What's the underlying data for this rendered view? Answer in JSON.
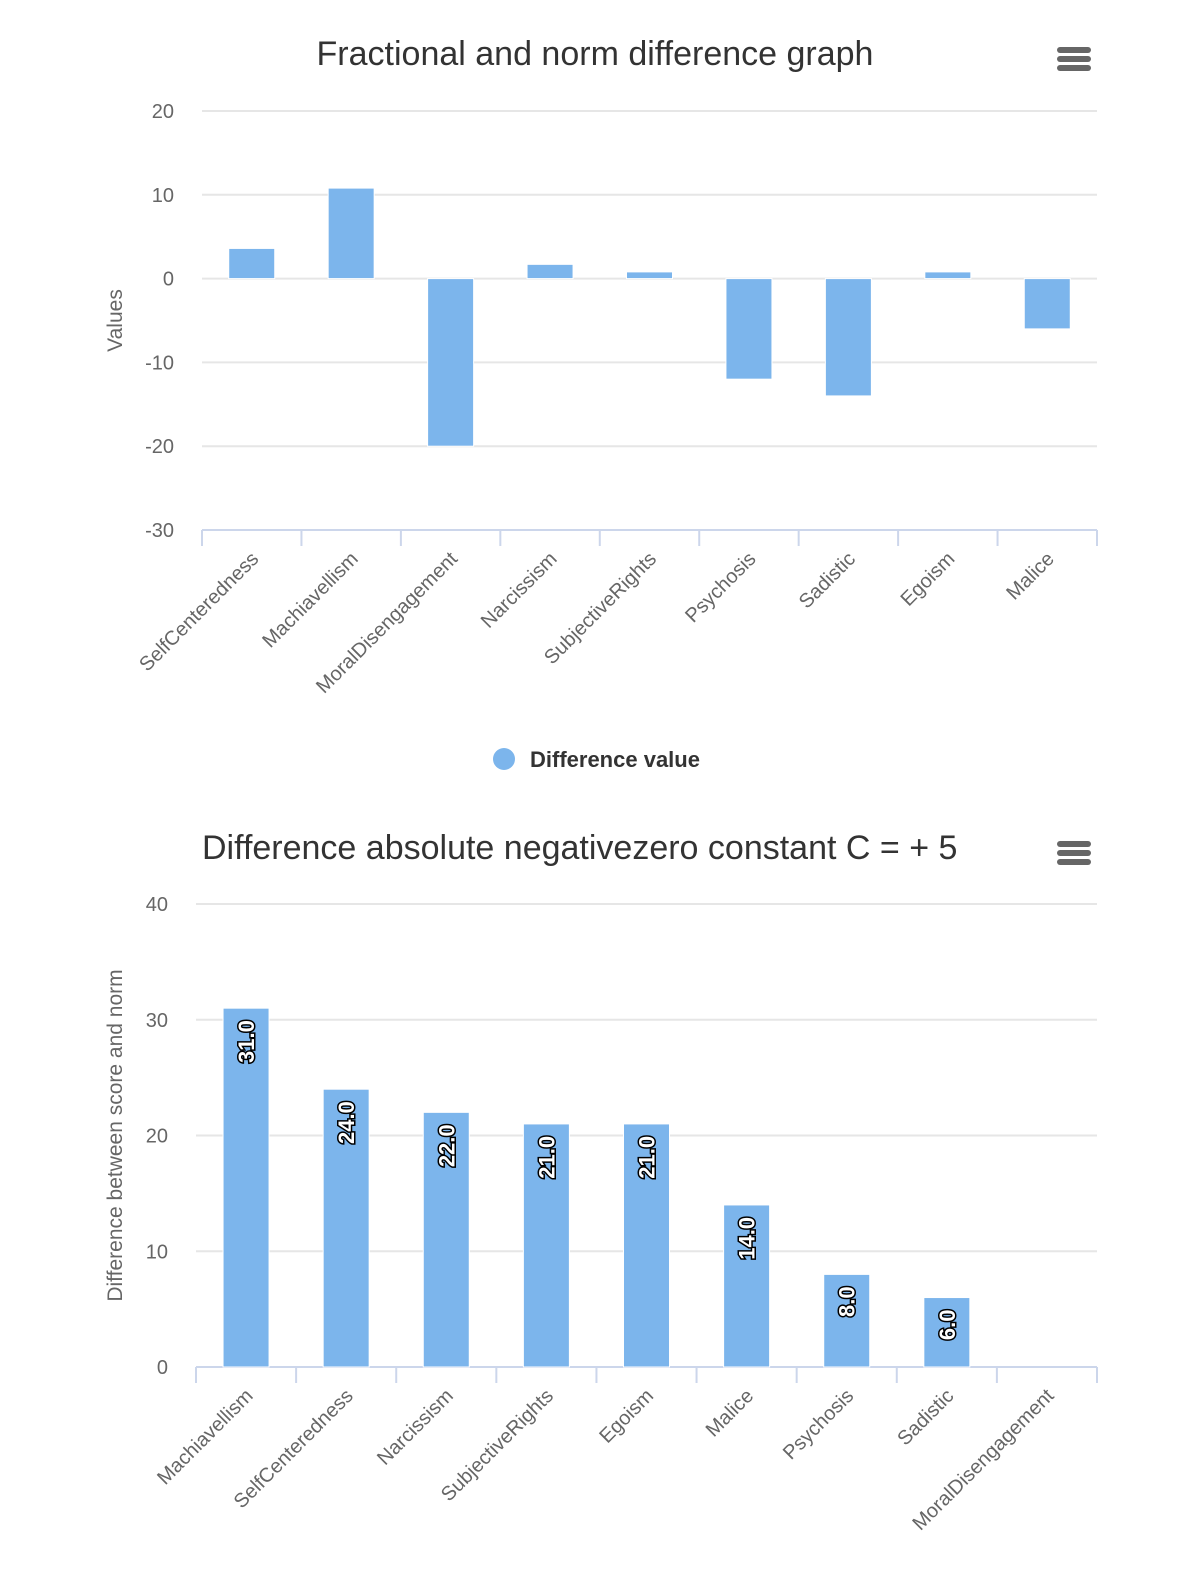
{
  "chart_data": [
    {
      "type": "bar",
      "title": "Fractional and norm difference graph",
      "ylabel": "Values",
      "xlabel": "",
      "ylim": [
        -30,
        20
      ],
      "yticks": [
        20,
        10,
        0,
        -10,
        -20,
        -30
      ],
      "grid": true,
      "legend_position": "bottom",
      "categories": [
        "SelfCenteredness",
        "Machiavellism",
        "MoralDisengagement",
        "Narcissism",
        "SubjectiveRights",
        "Psychosis",
        "Sadistic",
        "Egoism",
        "Malice"
      ],
      "series": [
        {
          "name": "Difference value",
          "values": [
            3.6,
            10.8,
            -20,
            1.7,
            0.8,
            -12,
            -14,
            0.8,
            -6
          ]
        }
      ],
      "color": "#7cb5ec"
    },
    {
      "type": "bar",
      "title": "Difference absolute negativezero constant C = + 5",
      "ylabel": "Difference between score and norm",
      "xlabel": "",
      "ylim": [
        0,
        40
      ],
      "yticks": [
        40,
        30,
        20,
        10,
        0
      ],
      "grid": true,
      "categories": [
        "Machiavellism",
        "SelfCenteredness",
        "Narcissism",
        "SubjectiveRights",
        "Egoism",
        "Malice",
        "Psychosis",
        "Sadistic",
        "MoralDisengagement"
      ],
      "values": [
        31,
        24,
        22,
        21,
        21,
        14,
        8,
        6,
        0
      ],
      "data_labels": [
        "31.0",
        "24.0",
        "22.0",
        "21.0",
        "21.0",
        "14.0",
        "8.0",
        "6.0",
        ""
      ],
      "color": "#7cb5ec"
    }
  ],
  "menu_icon": "hamburger-menu-icon"
}
